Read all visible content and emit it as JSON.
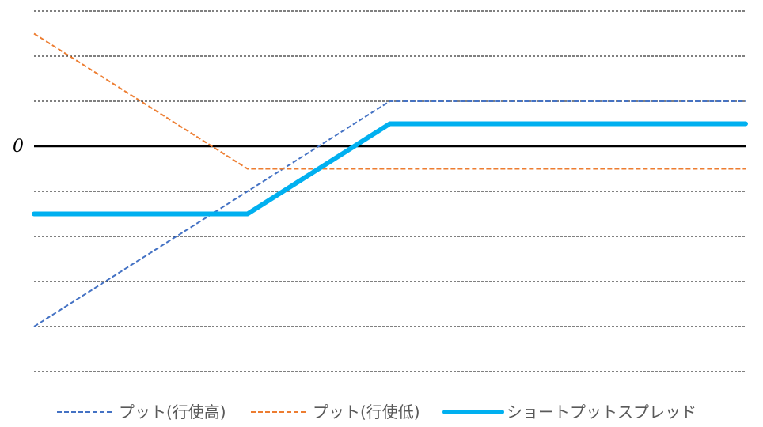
{
  "chart_data": {
    "type": "line",
    "title": "",
    "xlabel": "",
    "ylabel": "",
    "x": [
      0,
      3,
      5,
      10
    ],
    "xlim": [
      0,
      10
    ],
    "ylim": [
      -5,
      3
    ],
    "grid": true,
    "zero_label": "0",
    "legend_position": "bottom",
    "series": [
      {
        "name": "プット(行使高)",
        "style": "dashed",
        "color": "#4472C4",
        "values": [
          -4,
          -1,
          1,
          1
        ]
      },
      {
        "name": "プット(行使低)",
        "style": "dashed",
        "color": "#ED7D31",
        "values": [
          2.5,
          -0.5,
          -0.5,
          -0.5
        ]
      },
      {
        "name": "ショートプットスプレッド",
        "style": "solid",
        "color": "#00B0F0",
        "values": [
          -1.5,
          -1.5,
          0.5,
          0.5
        ]
      }
    ]
  }
}
